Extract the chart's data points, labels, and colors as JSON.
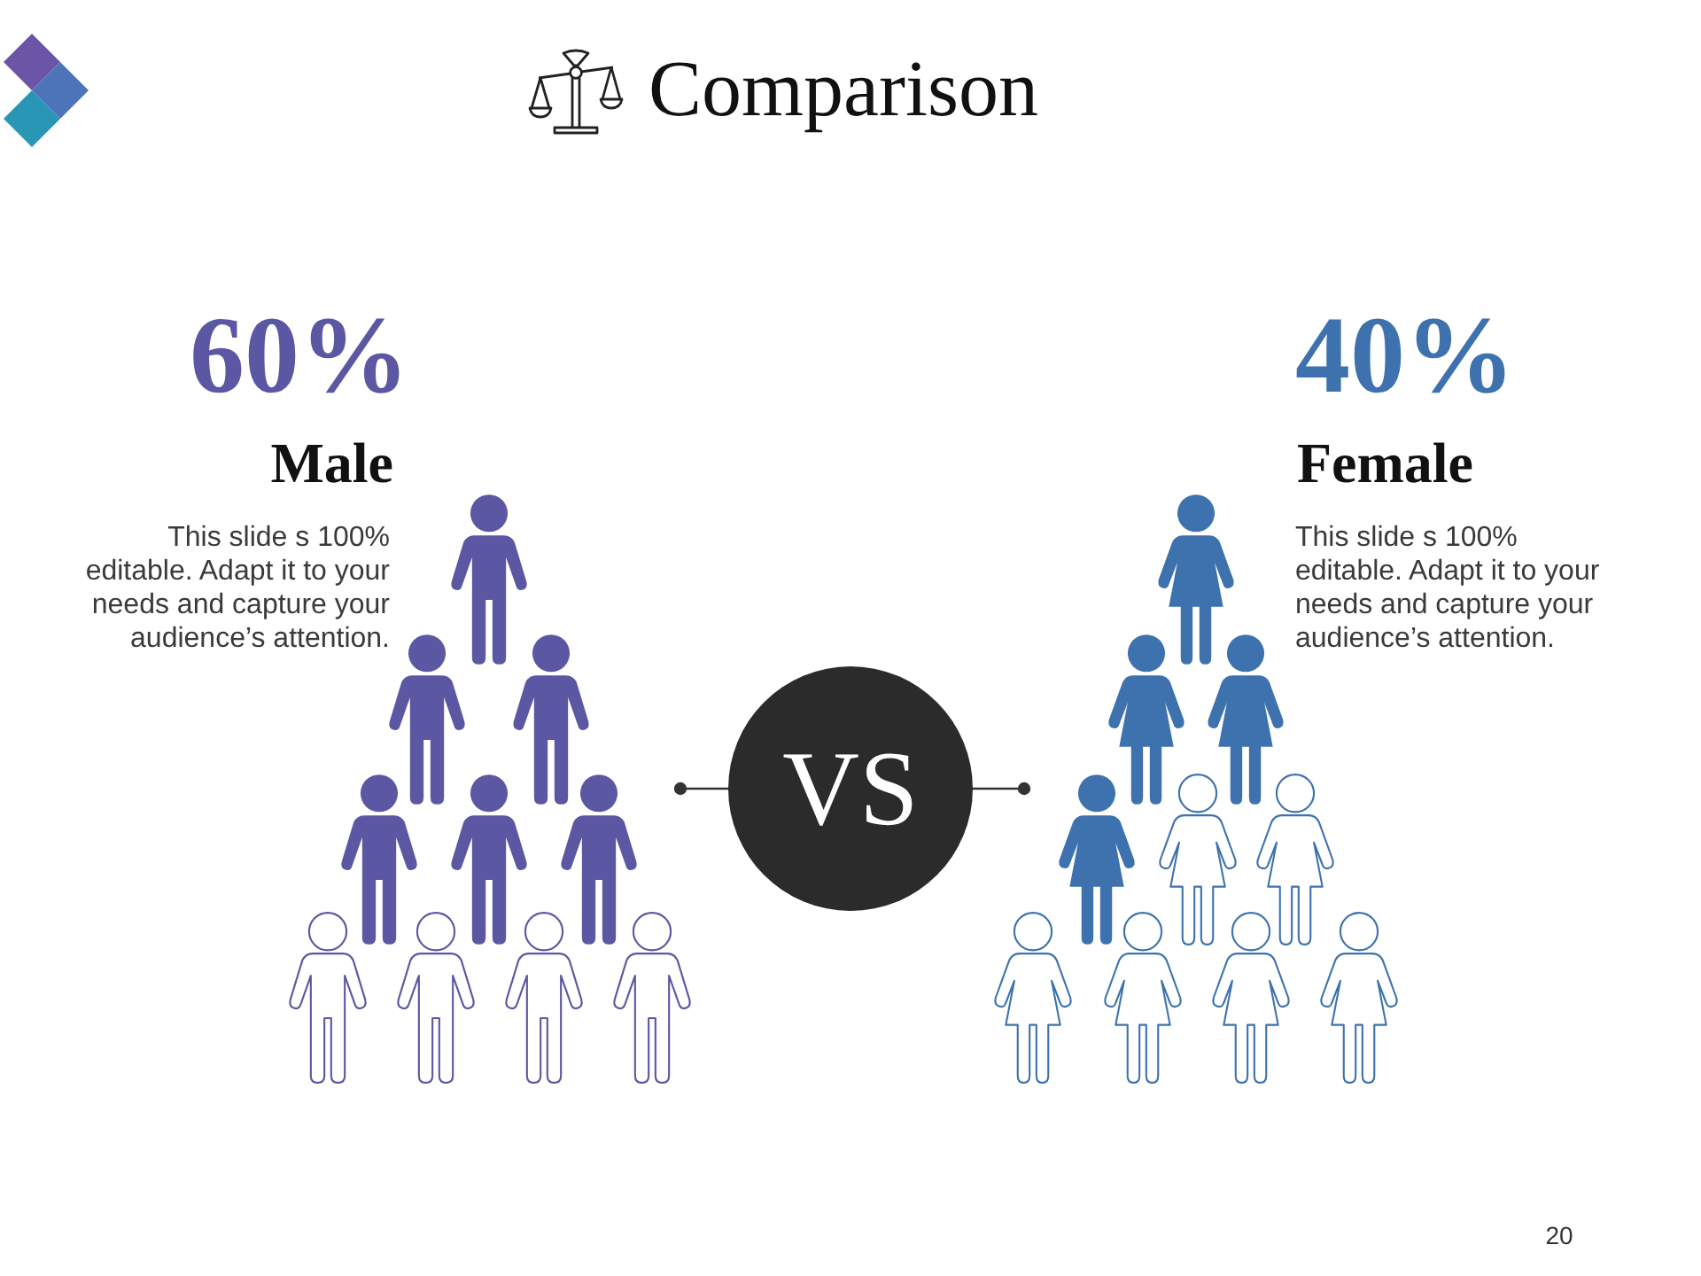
{
  "chart_data": {
    "type": "other",
    "title": "Comparison",
    "categories": [
      "Male",
      "Female"
    ],
    "values": [
      60,
      40
    ],
    "colors": [
      "#5b57a2",
      "#3d72ae"
    ],
    "value_labels": [
      "60%",
      "40%"
    ],
    "annotations": [
      "This slide s 100% editable. Adapt it to your needs and capture your audience’s attention.",
      "This slide s 100% editable. Adapt it to your needs and capture your audience’s attention.",
      "VS",
      "20"
    ]
  }
}
